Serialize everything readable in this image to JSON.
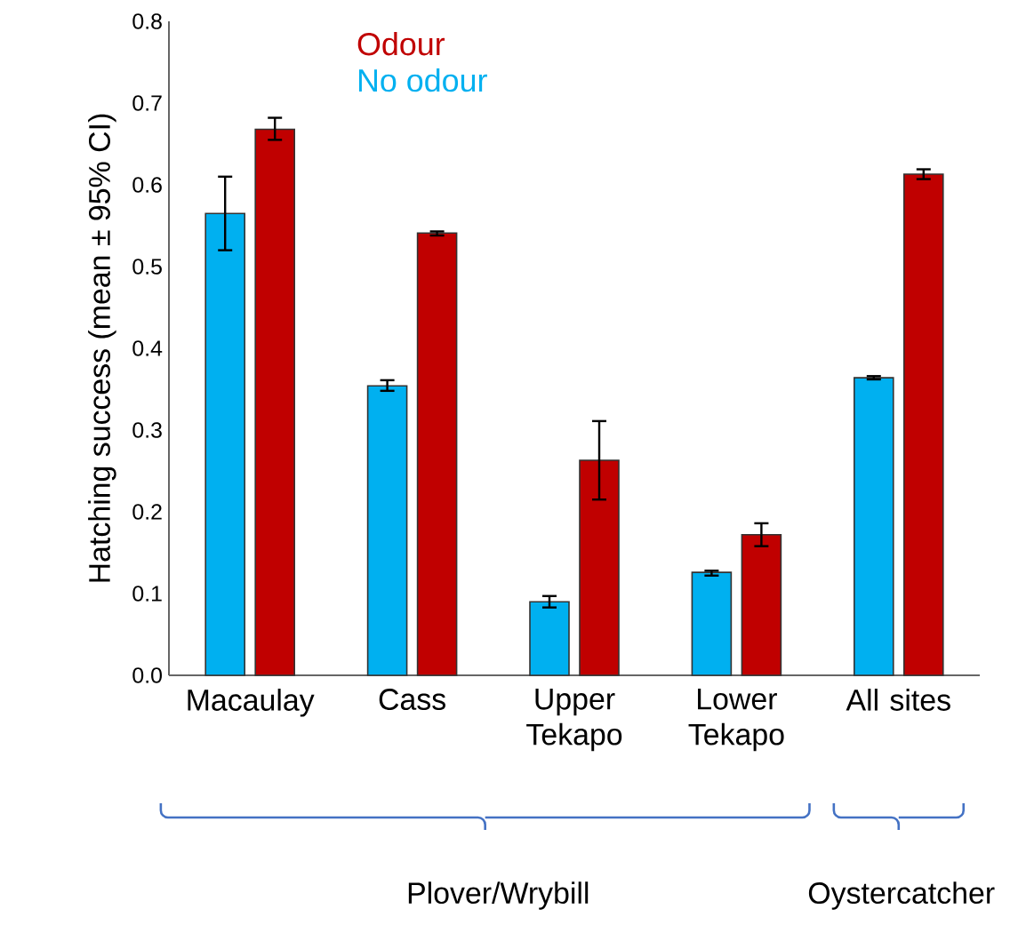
{
  "chart_data": {
    "type": "bar",
    "ylabel": "Hatching success (mean ± 95% CI)",
    "categories": [
      "Macaulay",
      "Cass",
      "Upper Tekapo",
      "Lower Tekapo",
      "All sites"
    ],
    "series": [
      {
        "name": "No odour",
        "color": "#00b0f0",
        "values": [
          0.565,
          0.354,
          0.09,
          0.126,
          0.364
        ],
        "errors": [
          [
            0.52,
            0.61
          ],
          [
            0.348,
            0.361
          ],
          [
            0.083,
            0.097
          ],
          [
            0.122,
            0.128
          ],
          [
            0.362,
            0.366
          ]
        ]
      },
      {
        "name": "Odour",
        "color": "#c00000",
        "values": [
          0.668,
          0.541,
          0.263,
          0.172,
          0.613
        ],
        "errors": [
          [
            0.655,
            0.682
          ],
          [
            0.538,
            0.543
          ],
          [
            0.215,
            0.311
          ],
          [
            0.158,
            0.186
          ],
          [
            0.607,
            0.619
          ]
        ]
      }
    ],
    "ylim": [
      0,
      0.8
    ],
    "yticks": [
      {
        "value": 0,
        "label": "0.0"
      },
      0.1,
      0.2,
      0.3,
      0.4,
      0.5,
      0.6,
      0.7,
      0.8
    ],
    "legend": "top left",
    "annotations": [
      "Plover/Wrybill",
      "Oystercatcher"
    ]
  }
}
